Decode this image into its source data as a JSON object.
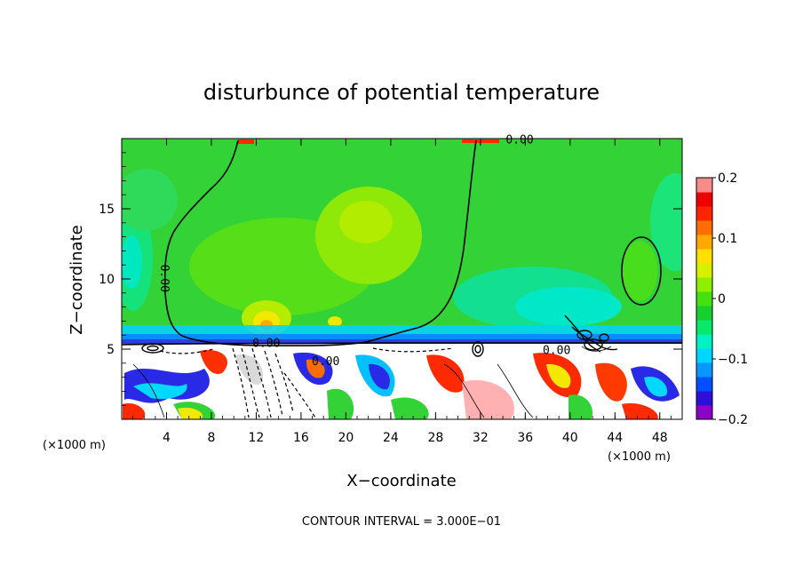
{
  "chart_data": {
    "type": "heatmap",
    "title": "disturbunce of potential temperature",
    "xlabel": "X−coordinate",
    "ylabel": "Z−coordinate",
    "x_unit_left": "(×1000 m)",
    "x_unit_right": "(×1000 m)",
    "xlim": [
      0,
      50
    ],
    "ylim": [
      0,
      20
    ],
    "x_ticks": [
      4,
      8,
      12,
      16,
      20,
      24,
      28,
      32,
      36,
      40,
      44,
      48
    ],
    "x_tick_labels": [
      "4",
      "8",
      "12",
      "16",
      "20",
      "24",
      "28",
      "32",
      "36",
      "40",
      "44",
      "48"
    ],
    "y_ticks": [
      5,
      10,
      15
    ],
    "y_tick_labels": [
      "5",
      "10",
      "15"
    ],
    "colorbar": {
      "range": [
        -0.2,
        0.2
      ],
      "labels": [
        {
          "value": 0.2,
          "text": "0.2"
        },
        {
          "value": 0.1,
          "text": "0.1"
        },
        {
          "value": 0.0,
          "text": "0"
        },
        {
          "value": -0.1,
          "text": "−0.1"
        },
        {
          "value": -0.2,
          "text": "−0.2"
        }
      ],
      "colors": [
        "#8e00c8",
        "#2d10d8",
        "#0050ff",
        "#0a96ff",
        "#00d6ff",
        "#00f2c2",
        "#08e86a",
        "#18cf30",
        "#45e010",
        "#8ef000",
        "#d6f000",
        "#ffe000",
        "#ffa800",
        "#ff6c00",
        "#ff2400",
        "#ee0000",
        "#f88a8a"
      ]
    },
    "background_color": "#33d236",
    "contour_interval_text": "CONTOUR INTERVAL =  3.000E−01",
    "contour_labels": [
      {
        "text": "0.00",
        "x": 35.5,
        "z": 19.9
      },
      {
        "text": "0.00",
        "x": 3.5,
        "z": 10.3,
        "rotated": true
      },
      {
        "text": "0.00",
        "x": 12.9,
        "z": 5.4
      },
      {
        "text": "0.00",
        "x": 18.2,
        "z": 4.1
      },
      {
        "text": "0.00",
        "x": 38.8,
        "z": 4.9
      }
    ]
  }
}
